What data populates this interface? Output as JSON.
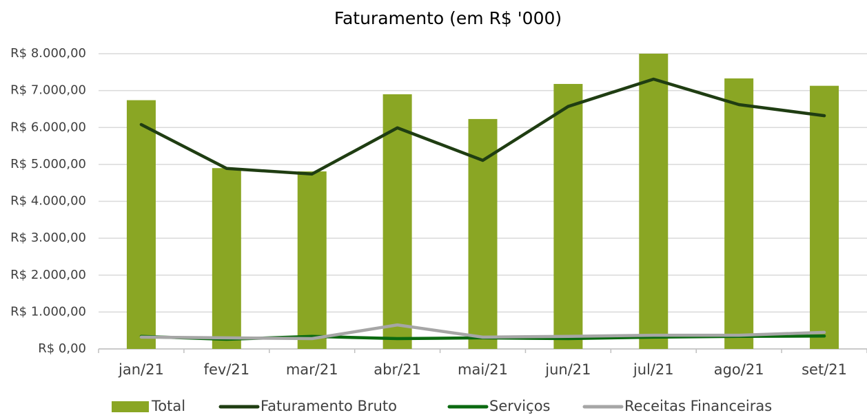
{
  "chart_data": {
    "type": "combo",
    "title": "Faturamento (em R$ '000)",
    "categories": [
      "jan/21",
      "fev/21",
      "mar/21",
      "abr/21",
      "mai/21",
      "jun/21",
      "jul/21",
      "ago/21",
      "set/21"
    ],
    "series": [
      {
        "name": "Total",
        "type": "bar",
        "color": "#8aa624",
        "values": [
          6740,
          4900,
          4810,
          6900,
          6230,
          7180,
          8000,
          7330,
          7130
        ]
      },
      {
        "name": "Faturamento Bruto",
        "type": "line",
        "color": "#1f3d12",
        "values": [
          6080,
          4890,
          4740,
          5990,
          5110,
          6570,
          7310,
          6620,
          6320
        ]
      },
      {
        "name": "Serviços",
        "type": "line",
        "color": "#0b6a10",
        "values": [
          340,
          260,
          340,
          280,
          300,
          280,
          320,
          340,
          350
        ]
      },
      {
        "name": "Receitas Financeiras",
        "type": "line",
        "color": "#a6a6a6",
        "values": [
          320,
          300,
          280,
          650,
          320,
          340,
          370,
          370,
          450
        ]
      }
    ],
    "ylim": [
      0,
      8000
    ],
    "yticks": [
      {
        "value": 0,
        "label": "R$ 0,00"
      },
      {
        "value": 1000,
        "label": "R$ 1.000,00"
      },
      {
        "value": 2000,
        "label": "R$ 2.000,00"
      },
      {
        "value": 3000,
        "label": "R$ 3.000,00"
      },
      {
        "value": 4000,
        "label": "R$ 4.000,00"
      },
      {
        "value": 5000,
        "label": "R$ 5.000,00"
      },
      {
        "value": 6000,
        "label": "R$ 6.000,00"
      },
      {
        "value": 7000,
        "label": "R$ 7.000,00"
      },
      {
        "value": 8000,
        "label": "R$ 8.000,00"
      }
    ],
    "grid": true,
    "legend": "bottom"
  }
}
